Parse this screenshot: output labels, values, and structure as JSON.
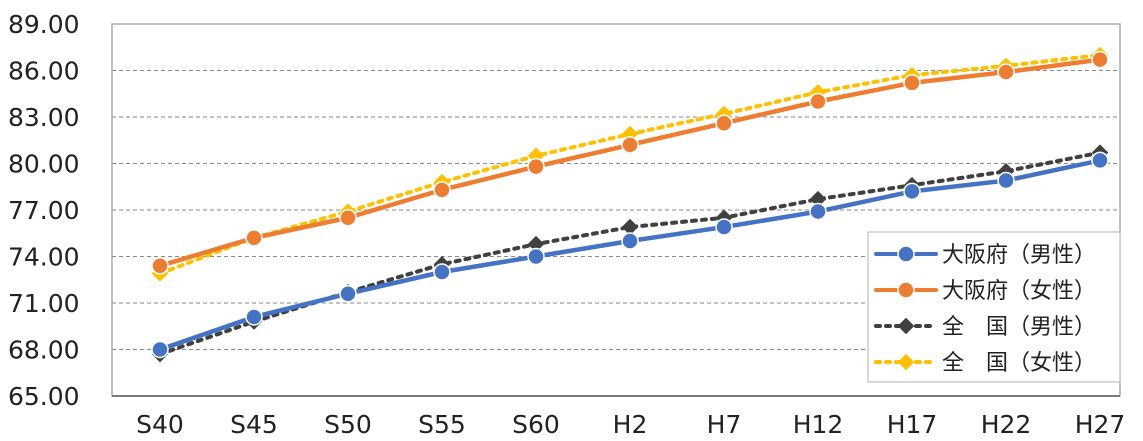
{
  "chart_data": {
    "type": "line",
    "categories": [
      "S40",
      "S45",
      "S50",
      "S55",
      "S60",
      "H2",
      "H7",
      "H12",
      "H17",
      "H22",
      "H27"
    ],
    "ylim": [
      65,
      89
    ],
    "yticks": [
      "65.00",
      "68.00",
      "71.00",
      "74.00",
      "77.00",
      "80.00",
      "83.00",
      "86.00",
      "89.00"
    ],
    "grid": "horizontal dashed",
    "legend_position": "bottom-right",
    "series": [
      {
        "name": "大阪府（男性）",
        "style": "solid-circle",
        "color": "#4472c4",
        "values": [
          68.0,
          70.1,
          71.6,
          73.0,
          74.0,
          75.0,
          75.9,
          76.9,
          78.2,
          78.9,
          80.2
        ]
      },
      {
        "name": "大阪府（女性）",
        "style": "solid-circle",
        "color": "#ed7d31",
        "values": [
          73.4,
          75.2,
          76.5,
          78.3,
          79.8,
          81.2,
          82.6,
          84.0,
          85.2,
          85.9,
          86.7
        ]
      },
      {
        "name": "全　国（男性）",
        "style": "dotted-diamond",
        "color": "#404040",
        "values": [
          67.7,
          69.8,
          71.7,
          73.5,
          74.8,
          75.9,
          76.5,
          77.7,
          78.6,
          79.5,
          80.7
        ]
      },
      {
        "name": "全　国（女性）",
        "style": "dotted-diamond",
        "color": "#ffc000",
        "values": [
          72.9,
          75.2,
          76.9,
          78.8,
          80.5,
          81.9,
          83.2,
          84.6,
          85.7,
          86.3,
          87.0
        ]
      }
    ]
  }
}
